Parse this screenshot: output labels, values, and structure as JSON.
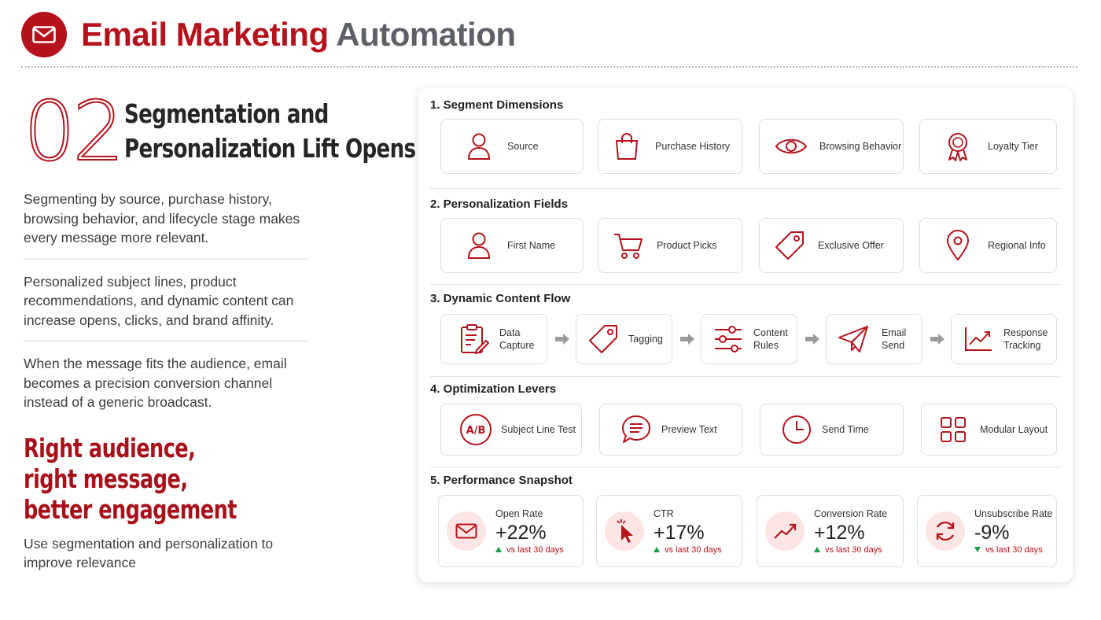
{
  "header": {
    "title_part1": "Email Marketing",
    "title_part2": "Automation",
    "logo_icon": "envelope-icon",
    "accent": "#b5121b"
  },
  "left": {
    "number": "02",
    "headline_line1": "Segmentation and",
    "headline_line2": "Personalization Lift Opens",
    "paragraph1": "Segmenting by source, purchase history, browsing behavior, and lifecycle stage makes every message more relevant.",
    "paragraph2": "Personalized subject lines, product recommendations, and dynamic content can increase opens, clicks, and brand affinity.",
    "paragraph3": "When the message fits the audience, email becomes a precision conversion channel instead of a generic broadcast.",
    "cta_line1": "Right audience,",
    "cta_line2": "right message,",
    "cta_line3": "better engagement",
    "tail": "Use segmentation and personalization to improve relevance"
  },
  "panel": {
    "segment": {
      "title": "1.  Segment Dimensions",
      "items": [
        {
          "label": "Source",
          "icon": "person-icon"
        },
        {
          "label": "Purchase History",
          "icon": "shopping-bag-icon"
        },
        {
          "label": "Browsing Behavior",
          "icon": "eye-icon"
        },
        {
          "label": "Loyalty Tier",
          "icon": "award-ribbon-icon"
        }
      ]
    },
    "personalization": {
      "title": "2.  Personalization Fields",
      "items": [
        {
          "label": "First Name",
          "icon": "person-icon"
        },
        {
          "label": "Product Picks",
          "icon": "shopping-cart-icon"
        },
        {
          "label": "Exclusive Offer",
          "icon": "price-tag-icon"
        },
        {
          "label": "Regional Info",
          "icon": "map-pin-icon"
        }
      ]
    },
    "flow": {
      "title": "3.  Dynamic Content Flow",
      "items": [
        {
          "label1": "Data",
          "label2": "Capture",
          "icon": "clipboard-edit-icon"
        },
        {
          "label1": "Tagging",
          "label2": "",
          "icon": "tag-icon"
        },
        {
          "label1": "Content",
          "label2": "Rules",
          "icon": "sliders-icon"
        },
        {
          "label1": "Email",
          "label2": "Send",
          "icon": "paper-plane-icon"
        },
        {
          "label1": "Response",
          "label2": "Tracking",
          "icon": "line-chart-icon"
        }
      ]
    },
    "optimization": {
      "title": "4.  Optimization Levers",
      "items": [
        {
          "label": "Subject Line Test",
          "icon": "ab-test-icon"
        },
        {
          "label": "Preview Text",
          "icon": "chat-bubble-icon"
        },
        {
          "label": "Send Time",
          "icon": "clock-icon"
        },
        {
          "label": "Modular Layout",
          "icon": "grid-icon"
        }
      ]
    },
    "performance": {
      "title": "5.  Performance Snapshot",
      "metrics": [
        {
          "label": "Open Rate",
          "value": "+22%",
          "change": "vs last 30 days",
          "trend": "up",
          "icon": "envelope-icon"
        },
        {
          "label": "CTR",
          "value": "+17%",
          "change": "vs last 30 days",
          "trend": "up",
          "icon": "cursor-click-icon"
        },
        {
          "label": "Conversion Rate",
          "value": "+12%",
          "change": "vs last 30 days",
          "trend": "up",
          "icon": "trend-up-icon"
        },
        {
          "label": "Unsubscribe Rate",
          "value": "-9%",
          "change": "vs last 30 days",
          "trend": "down",
          "icon": "refresh-icon"
        }
      ]
    }
  }
}
